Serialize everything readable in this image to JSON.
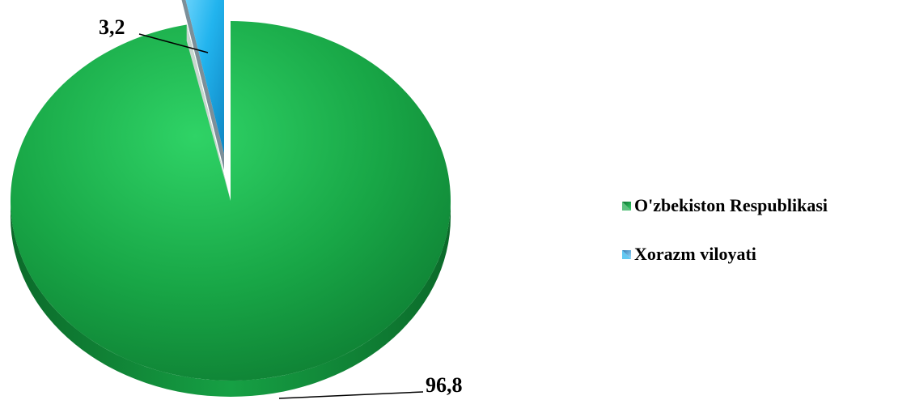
{
  "chart_data": {
    "type": "pie",
    "title": "",
    "categories": [
      "O'zbekiston Respublikasi",
      "Xorazm viloyati"
    ],
    "values": [
      96.8,
      3.2
    ],
    "data_labels": [
      "96,8",
      "3,2"
    ],
    "colors": [
      "#1aa84a",
      "#1fb2ec"
    ],
    "style": "3d-exploded",
    "legend_position": "right"
  }
}
